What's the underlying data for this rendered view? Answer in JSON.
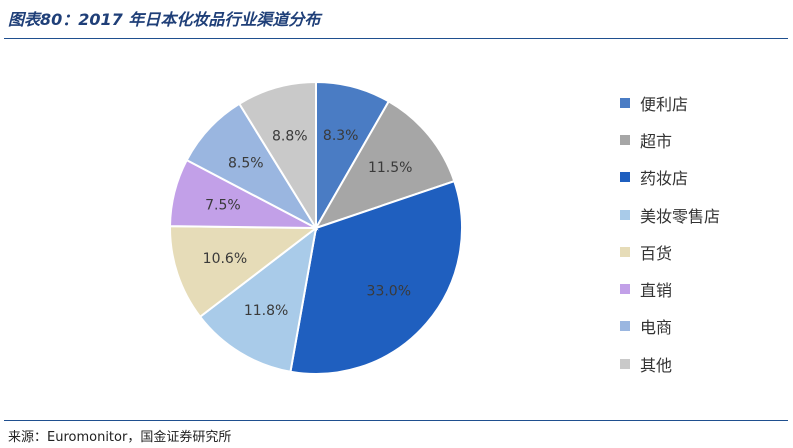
{
  "title": "图表80：2017 年日本化妆品行业渠道分布",
  "source": "来源：Euromonitor，国金证券研究所",
  "chart_data": {
    "type": "pie",
    "title": "图表80：2017 年日本化妆品行业渠道分布",
    "legend_position": "right",
    "slices": [
      {
        "name": "便利店",
        "value": 8.3,
        "label": "8.3%",
        "color": "#4a7cc4"
      },
      {
        "name": "超市",
        "value": 11.5,
        "label": "11.5%",
        "color": "#a6a6a6"
      },
      {
        "name": "药妆店",
        "value": 33.0,
        "label": "33.0%",
        "color": "#1f5fbf"
      },
      {
        "name": "美妆零售店",
        "value": 11.8,
        "label": "11.8%",
        "color": "#a9cbe9"
      },
      {
        "name": "百货",
        "value": 10.6,
        "label": "10.6%",
        "color": "#e6dcb8"
      },
      {
        "name": "直销",
        "value": 7.5,
        "label": "7.5%",
        "color": "#c2a0e8"
      },
      {
        "name": "电商",
        "value": 8.5,
        "label": "8.5%",
        "color": "#9ab6e0"
      },
      {
        "name": "其他",
        "value": 8.8,
        "label": "8.8%",
        "color": "#c9c9c9"
      }
    ]
  }
}
